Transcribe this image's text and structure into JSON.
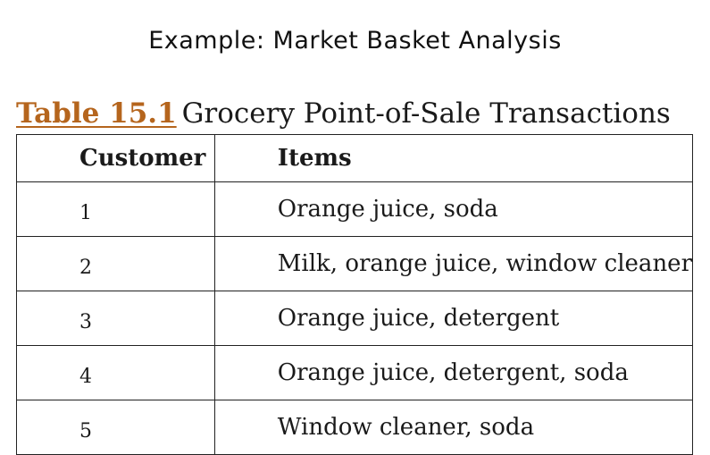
{
  "slide": {
    "title": "Example:  Market  Basket  Analysis"
  },
  "caption": {
    "table_number": "Table 15.1",
    "text": "Grocery Point-of-Sale Transactions"
  },
  "table": {
    "headers": {
      "customer": "Customer",
      "items": "Items"
    },
    "rows": [
      {
        "customer": "1",
        "items": "Orange juice, soda"
      },
      {
        "customer": "2",
        "items": "Milk, orange juice, window cleaner"
      },
      {
        "customer": "3",
        "items": "Orange juice, detergent"
      },
      {
        "customer": "4",
        "items": "Orange juice, detergent, soda"
      },
      {
        "customer": "5",
        "items": "Window cleaner, soda"
      }
    ]
  },
  "colors": {
    "table_number": "#b5651d",
    "text": "#1a1a1a",
    "border": "#222222"
  }
}
